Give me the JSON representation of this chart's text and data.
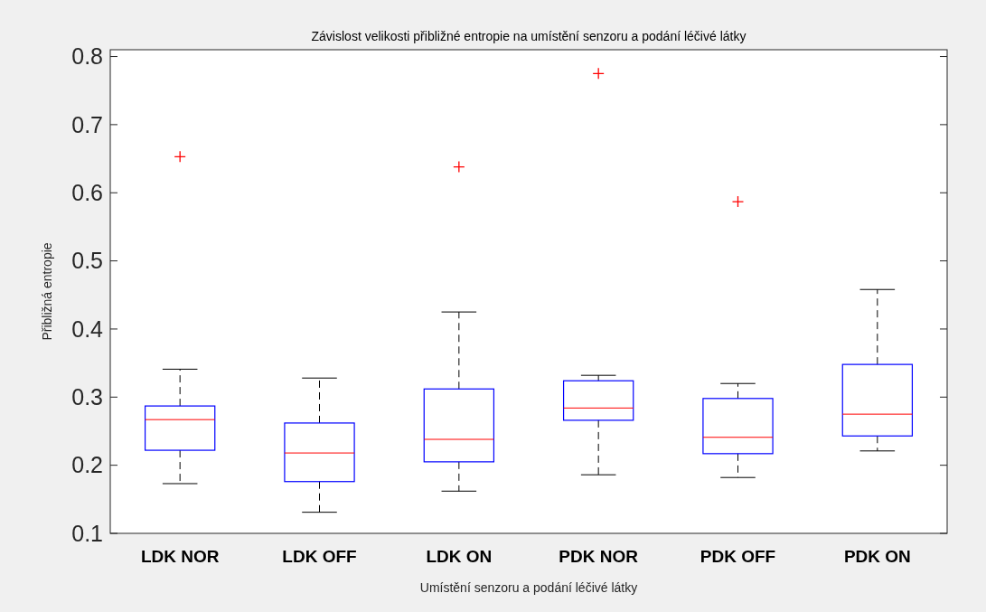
{
  "chart_data": {
    "type": "box",
    "title": "Závislost velikosti přibližné entropie na umístění senzoru a podání léčivé látky",
    "xlabel": "Umístění senzoru a podání léčivé látky",
    "ylabel": "Přibližná entropie",
    "categories": [
      "LDK NOR",
      "LDK OFF",
      "LDK ON",
      "PDK NOR",
      "PDK OFF",
      "PDK ON"
    ],
    "color": "#0000ff",
    "ylim": [
      0.1,
      0.81
    ],
    "yticks": [
      0.1,
      0.2,
      0.3,
      0.4,
      0.5,
      0.6,
      0.7,
      0.8
    ],
    "grid": false,
    "boxes": [
      {
        "low": 0.173,
        "q1": 0.222,
        "median": 0.267,
        "q3": 0.287,
        "high": 0.341,
        "outliers": [
          0.653
        ]
      },
      {
        "low": 0.131,
        "q1": 0.176,
        "median": 0.218,
        "q3": 0.262,
        "high": 0.328
      },
      {
        "low": 0.162,
        "q1": 0.205,
        "median": 0.238,
        "q3": 0.312,
        "high": 0.425,
        "outliers": [
          0.638
        ]
      },
      {
        "low": 0.186,
        "q1": 0.266,
        "median": 0.284,
        "q3": 0.324,
        "high": 0.332,
        "outliers": [
          0.775
        ]
      },
      {
        "low": 0.182,
        "q1": 0.217,
        "median": 0.241,
        "q3": 0.298,
        "high": 0.32,
        "outliers": [
          0.587
        ]
      },
      {
        "low": 0.221,
        "q1": 0.243,
        "median": 0.275,
        "q3": 0.348,
        "high": 0.458
      }
    ]
  }
}
